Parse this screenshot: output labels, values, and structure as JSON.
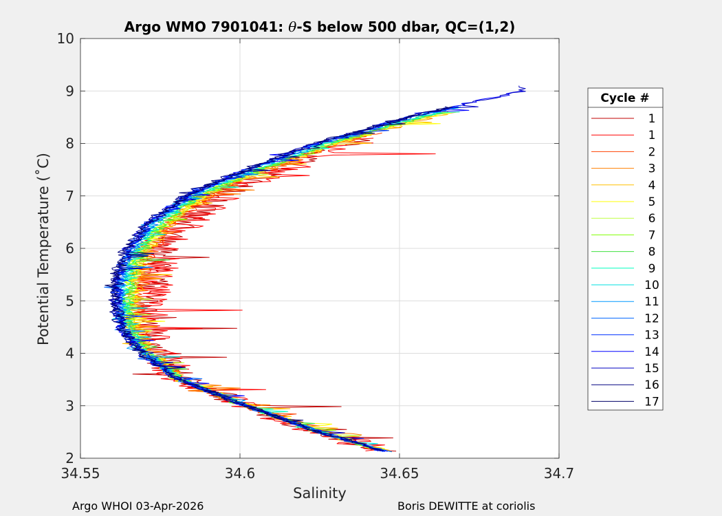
{
  "chart_data": {
    "type": "line",
    "title_prefix": "Argo WMO 7901041: ",
    "title_symbol": "θ",
    "title_suffix": "-S below 500 dbar,  QC=(1,2)",
    "xlabel": "Salinity",
    "ylabel": "Potential Temperature (˚C)",
    "xlim": [
      34.55,
      34.7
    ],
    "ylim": [
      2,
      10
    ],
    "xticks": [
      "34.55",
      "34.6",
      "34.65",
      "34.7"
    ],
    "xtick_values": [
      34.55,
      34.6,
      34.65,
      34.7
    ],
    "yticks": [
      "2",
      "3",
      "4",
      "5",
      "6",
      "7",
      "8",
      "9",
      "10"
    ],
    "ytick_values": [
      2,
      3,
      4,
      5,
      6,
      7,
      8,
      9,
      10
    ],
    "grid": true,
    "legend_title": "Cycle #",
    "legend_position": "right",
    "series": [
      {
        "name": "1",
        "color": "#c00000",
        "noise": 0.006,
        "shift": 0.008,
        "tmax": 8.1
      },
      {
        "name": "1",
        "color": "#ff0000",
        "noise": 0.007,
        "shift": 0.009,
        "tmax": 8.1
      },
      {
        "name": "2",
        "color": "#ff4000",
        "noise": 0.003,
        "shift": 0.005,
        "tmax": 8.2
      },
      {
        "name": "3",
        "color": "#ff8000",
        "noise": 0.003,
        "shift": 0.004,
        "tmax": 8.6
      },
      {
        "name": "4",
        "color": "#ffbf00",
        "noise": 0.003,
        "shift": 0.004,
        "tmax": 8.6
      },
      {
        "name": "5",
        "color": "#ffff00",
        "noise": 0.003,
        "shift": 0.003,
        "tmax": 8.6
      },
      {
        "name": "6",
        "color": "#bfff40",
        "noise": 0.002,
        "shift": 0.003,
        "tmax": 8.6
      },
      {
        "name": "7",
        "color": "#80ff00",
        "noise": 0.002,
        "shift": 0.002,
        "tmax": 8.6
      },
      {
        "name": "8",
        "color": "#40e040",
        "noise": 0.002,
        "shift": 0.002,
        "tmax": 8.6
      },
      {
        "name": "9",
        "color": "#00ffbf",
        "noise": 0.002,
        "shift": 0.001,
        "tmax": 8.6
      },
      {
        "name": "10",
        "color": "#00e0e0",
        "noise": 0.002,
        "shift": 0.0,
        "tmax": 8.7
      },
      {
        "name": "11",
        "color": "#0099ff",
        "noise": 0.002,
        "shift": -0.001,
        "tmax": 8.7
      },
      {
        "name": "12",
        "color": "#0066ff",
        "noise": 0.002,
        "shift": -0.001,
        "tmax": 8.7
      },
      {
        "name": "13",
        "color": "#0033ff",
        "noise": 0.002,
        "shift": -0.002,
        "tmax": 8.7
      },
      {
        "name": "14",
        "color": "#0000ff",
        "noise": 0.002,
        "shift": -0.002,
        "tmax": 9.0
      },
      {
        "name": "15",
        "color": "#0000c0",
        "noise": 0.002,
        "shift": -0.002,
        "tmax": 9.1
      },
      {
        "name": "16",
        "color": "#000080",
        "noise": 0.002,
        "shift": -0.003,
        "tmax": 8.7
      },
      {
        "name": "17",
        "color": "#000066",
        "noise": 0.002,
        "shift": -0.002,
        "tmax": 8.7
      }
    ],
    "mean_profile": {
      "theta": [
        2.1,
        2.5,
        3.0,
        3.5,
        4.0,
        4.5,
        5.0,
        5.5,
        6.0,
        6.5,
        7.0,
        7.5,
        8.0,
        8.5,
        9.0
      ],
      "salinity": [
        34.647,
        34.625,
        34.602,
        34.581,
        34.57,
        34.564,
        34.563,
        34.564,
        34.567,
        34.574,
        34.585,
        34.604,
        34.626,
        34.655,
        34.69
      ]
    }
  },
  "footer_left": "Argo WHOI 03-Apr-2026",
  "footer_right": "Boris DEWITTE at coriolis"
}
